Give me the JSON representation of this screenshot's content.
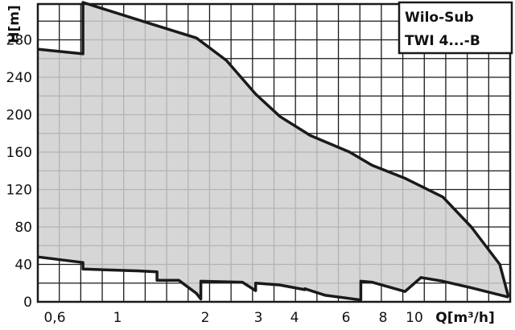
{
  "chart_data": {
    "type": "area",
    "title_lines": [
      "Wilo-Sub",
      "TWI 4...-B"
    ],
    "xlabel": "Q[m³/h]",
    "ylabel": "H[m]",
    "ylim": [
      0,
      320
    ],
    "x_scale": "non-linear (as printed ticks)",
    "x_ticks": [
      {
        "label": "0,6",
        "value": 0.6
      },
      {
        "label": "1",
        "value": 1
      },
      {
        "label": "2",
        "value": 2
      },
      {
        "label": "3",
        "value": 3
      },
      {
        "label": "4",
        "value": 4
      },
      {
        "label": "6",
        "value": 6
      },
      {
        "label": "8",
        "value": 8
      },
      {
        "label": "10",
        "value": 10
      }
    ],
    "y_ticks": [
      0,
      40,
      80,
      120,
      160,
      200,
      240,
      280
    ],
    "grid": true,
    "fill_color": "#cfcfcf",
    "line_color": "#1a1a1a",
    "series": [
      {
        "role": "upper",
        "points": [
          [
            0.4,
            270
          ],
          [
            0.78,
            265
          ],
          [
            0.78,
            320
          ],
          [
            1.35,
            298
          ],
          [
            1.9,
            282
          ],
          [
            2.4,
            258
          ],
          [
            2.95,
            222
          ],
          [
            3.6,
            198
          ],
          [
            4.6,
            178
          ],
          [
            6.2,
            160
          ],
          [
            7.4,
            146
          ],
          [
            9.4,
            132
          ],
          [
            11.3,
            112
          ],
          [
            12.6,
            80
          ],
          [
            13.9,
            40
          ],
          [
            14.3,
            5
          ]
        ]
      },
      {
        "role": "lower",
        "points": [
          [
            0.4,
            48
          ],
          [
            0.78,
            42
          ],
          [
            0.78,
            35
          ],
          [
            1.25,
            33
          ],
          [
            1.45,
            32
          ],
          [
            1.45,
            23
          ],
          [
            1.7,
            23
          ],
          [
            1.9,
            9
          ],
          [
            1.95,
            3
          ],
          [
            1.95,
            22
          ],
          [
            2.7,
            21
          ],
          [
            2.95,
            12
          ],
          [
            2.95,
            20
          ],
          [
            3.6,
            18
          ],
          [
            4.4,
            13
          ],
          [
            4.4,
            14
          ],
          [
            5.2,
            7
          ],
          [
            6.8,
            2
          ],
          [
            6.8,
            22
          ],
          [
            7.4,
            21
          ],
          [
            9.4,
            11
          ],
          [
            10.3,
            26
          ],
          [
            11.3,
            22
          ],
          [
            12.6,
            15
          ],
          [
            14.3,
            5
          ]
        ]
      }
    ],
    "legend": {
      "placement": "top-right"
    }
  }
}
